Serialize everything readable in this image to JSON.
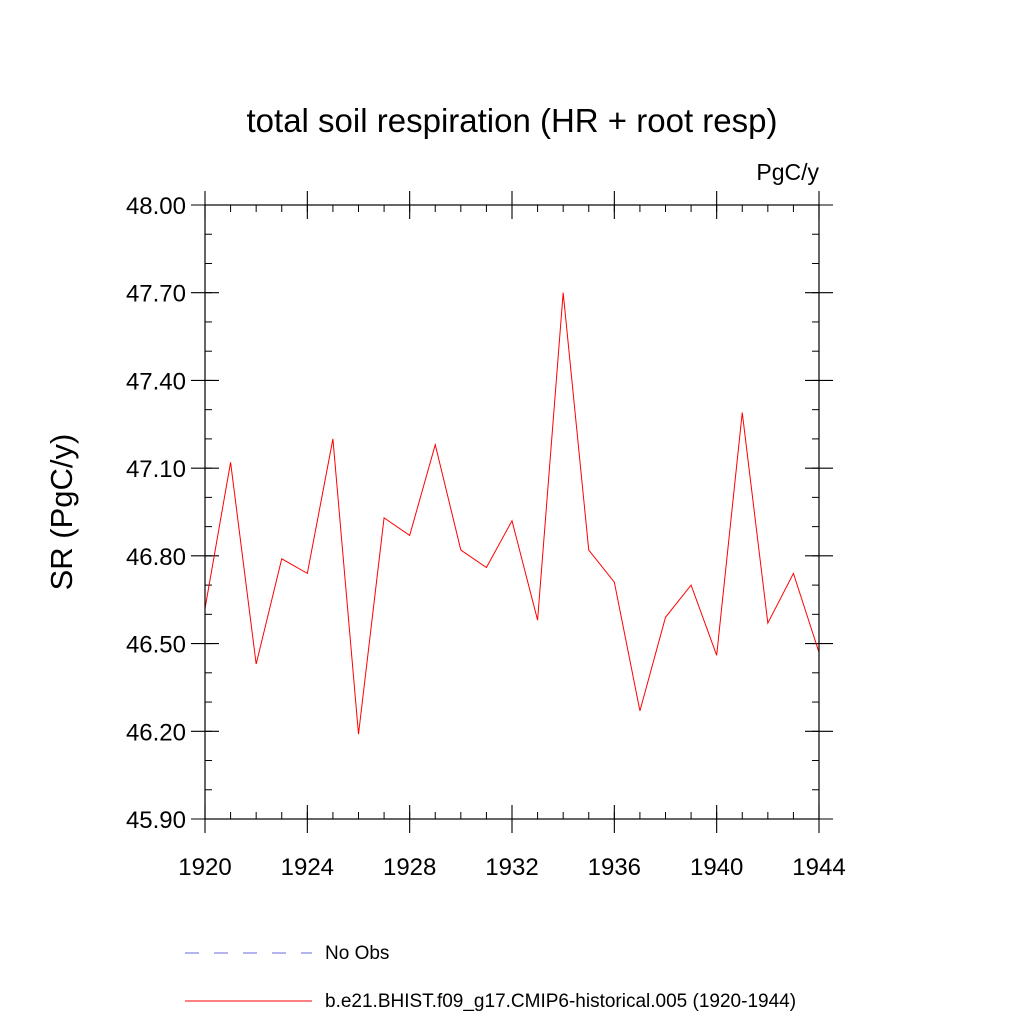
{
  "chart_data": {
    "type": "line",
    "title": "total soil respiration (HR + root resp)",
    "units_label": "PgC/y",
    "ylabel": "SR  (PgC/y)",
    "xlabel": "",
    "xlim": [
      1920,
      1944
    ],
    "ylim": [
      45.9,
      48.0
    ],
    "x_ticks": [
      1920,
      1924,
      1928,
      1932,
      1936,
      1940,
      1944
    ],
    "x_tick_labels": [
      "1920",
      "1924",
      "1928",
      "1932",
      "1936",
      "1940",
      "1944"
    ],
    "y_ticks": [
      45.9,
      46.2,
      46.5,
      46.8,
      47.1,
      47.4,
      47.7,
      48.0
    ],
    "y_tick_labels": [
      "45.90",
      "46.20",
      "46.50",
      "46.80",
      "47.10",
      "47.40",
      "47.70",
      "48.00"
    ],
    "x_minor_step": 1,
    "y_minor_step": 0.1,
    "grid": false,
    "series": [
      {
        "name": "b.e21.BHIST.f09_g17.CMIP6-historical.005 (1920-1944)",
        "color": "#ff0000",
        "dash": "solid",
        "x": [
          1920,
          1921,
          1922,
          1923,
          1924,
          1925,
          1926,
          1927,
          1928,
          1929,
          1930,
          1931,
          1932,
          1933,
          1934,
          1935,
          1936,
          1937,
          1938,
          1939,
          1940,
          1941,
          1942,
          1943,
          1944
        ],
        "values": [
          46.62,
          47.12,
          46.43,
          46.79,
          46.74,
          47.2,
          46.19,
          46.93,
          46.87,
          47.18,
          46.82,
          46.76,
          46.92,
          46.58,
          47.7,
          46.82,
          46.71,
          46.27,
          46.59,
          46.7,
          46.46,
          47.29,
          46.57,
          46.74,
          46.47
        ]
      }
    ],
    "legend": [
      {
        "label": "No Obs",
        "color": "#6a6adf",
        "dash": "dashed"
      },
      {
        "label": "b.e21.BHIST.f09_g17.CMIP6-historical.005 (1920-1944)",
        "color": "#ff0000",
        "dash": "solid"
      }
    ],
    "legend_position": "bottom"
  }
}
